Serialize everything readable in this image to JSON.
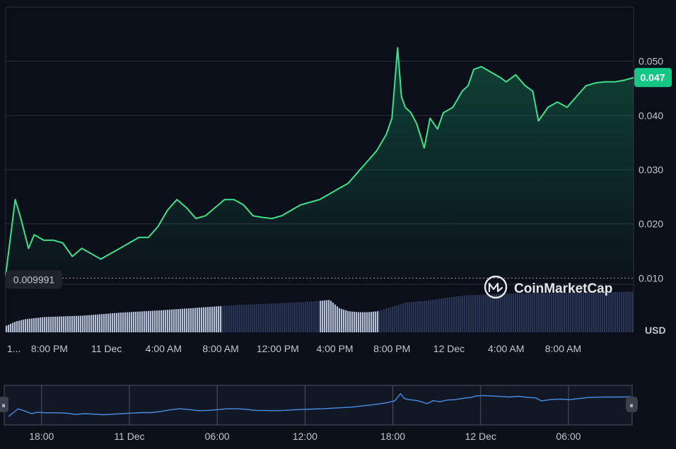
{
  "chart_data": {
    "type": "line",
    "currency": "USD",
    "y_ticks": [
      "0.050",
      "0.040",
      "0.030",
      "0.020",
      "0.010"
    ],
    "y_tick_values": [
      0.05,
      0.04,
      0.03,
      0.02,
      0.01
    ],
    "ylim": [
      0.0,
      0.06
    ],
    "x_ticks": [
      "1...",
      "8:00 PM",
      "11 Dec",
      "4:00 AM",
      "8:00 AM",
      "12:00 PM",
      "4:00 PM",
      "8:00 PM",
      "12 Dec",
      "4:00 AM",
      "8:00 AM"
    ],
    "x_tick_hours": [
      0.2,
      2.3,
      5.3,
      8.3,
      11.3,
      14.3,
      17.3,
      20.3,
      23.3,
      26.3,
      29.3
    ],
    "x_range_hours": [
      0,
      33
    ],
    "current_price": {
      "label": "0.047",
      "value": 0.047
    },
    "open_price": {
      "label": "0.009991",
      "value": 0.009991
    },
    "line_color": "#3ee08b",
    "price_series": {
      "x": [
        0,
        0.5,
        0.8,
        1.2,
        1.5,
        2,
        2.5,
        3,
        3.5,
        4,
        4.5,
        5,
        5.5,
        6,
        6.5,
        7,
        7.5,
        8,
        8.5,
        9,
        9.5,
        10,
        10.5,
        11,
        11.5,
        12,
        12.5,
        13,
        13.5,
        14,
        14.5,
        15,
        15.5,
        16,
        16.5,
        17,
        17.5,
        18,
        18.5,
        19,
        19.5,
        20,
        20.3,
        20.6,
        20.8,
        21,
        21.3,
        21.6,
        22,
        22.3,
        22.7,
        23,
        23.5,
        24,
        24.3,
        24.6,
        25,
        25.5,
        26,
        26.3,
        26.8,
        27.3,
        27.7,
        28,
        28.5,
        29,
        29.5,
        30,
        30.5,
        31,
        31.5,
        32,
        32.5,
        33
      ],
      "y": [
        0.0105,
        0.0245,
        0.021,
        0.0155,
        0.018,
        0.017,
        0.017,
        0.0165,
        0.014,
        0.0155,
        0.0145,
        0.0135,
        0.0145,
        0.0155,
        0.0165,
        0.0175,
        0.0175,
        0.0195,
        0.0225,
        0.0245,
        0.023,
        0.021,
        0.0215,
        0.023,
        0.0245,
        0.0245,
        0.0235,
        0.0215,
        0.0212,
        0.021,
        0.0215,
        0.0225,
        0.0235,
        0.024,
        0.0245,
        0.0255,
        0.0265,
        0.0275,
        0.0295,
        0.0315,
        0.0335,
        0.0365,
        0.0395,
        0.0525,
        0.0435,
        0.0415,
        0.0405,
        0.0385,
        0.034,
        0.0395,
        0.0375,
        0.0405,
        0.0415,
        0.0445,
        0.0455,
        0.0485,
        0.049,
        0.048,
        0.047,
        0.0462,
        0.0475,
        0.0455,
        0.0445,
        0.039,
        0.0415,
        0.0425,
        0.0415,
        0.0435,
        0.0455,
        0.046,
        0.0462,
        0.0462,
        0.0465,
        0.047
      ]
    },
    "volume_series": {
      "x": [
        0,
        0.5,
        1,
        2,
        4,
        6,
        8,
        10,
        11.3,
        12,
        14,
        16,
        16.5,
        17,
        17.5,
        18,
        18.5,
        19,
        19.5,
        20,
        21,
        22,
        23,
        24,
        26,
        28,
        30,
        32,
        33
      ],
      "v": [
        0.15,
        0.25,
        0.3,
        0.35,
        0.38,
        0.45,
        0.5,
        0.56,
        0.6,
        0.62,
        0.66,
        0.7,
        0.72,
        0.74,
        0.55,
        0.48,
        0.46,
        0.46,
        0.48,
        0.55,
        0.68,
        0.72,
        0.78,
        0.84,
        0.88,
        0.9,
        0.91,
        0.92,
        0.93
      ],
      "highlight_ranges_hours": [
        [
          0,
          11.3
        ],
        [
          16.5,
          19.6
        ]
      ]
    },
    "navigator": {
      "ticks": [
        "18:00",
        "11 Dec",
        "06:00",
        "12:00",
        "18:00",
        "12 Dec",
        "06:00"
      ],
      "tick_hours": [
        1.5,
        5.5,
        9.5,
        13.5,
        17.5,
        21.5,
        25.5
      ],
      "range_hours": [
        -0.2,
        28.4
      ],
      "line_color": "#4a8fe0",
      "handle_glyph": "⏸"
    }
  },
  "watermark": {
    "text": "CoinMarketCap",
    "icon": "coinmarketcap-logo-icon"
  },
  "colors": {
    "background": "#0b0f19",
    "grid": "#2a2f3b",
    "accent_green": "#16c784",
    "volume_light": "#b5c0d8",
    "volume_dark": "#2b3556"
  }
}
